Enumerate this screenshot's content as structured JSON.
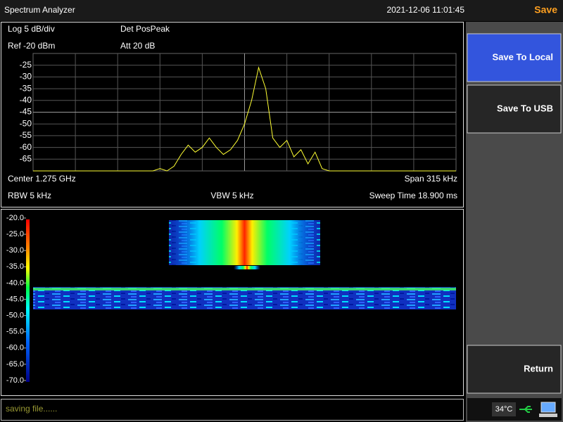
{
  "header": {
    "title": "Spectrum Analyzer",
    "datetime": "2021-12-06 11:01:45",
    "mode": "Save"
  },
  "spectrum": {
    "type": "line",
    "settings": {
      "scale": "Log 5 dB/div",
      "detector": "Det PosPeak",
      "ref": "Ref -20 dBm",
      "att": "Att 20 dB",
      "center": "Center 1.275 GHz",
      "span": "Span 315 kHz",
      "rbw": "RBW 5 kHz",
      "vbw": "VBW 5 kHz",
      "sweep": "Sweep Time 18.900 ms"
    },
    "ylim": [
      -70,
      -20
    ],
    "yticks": [
      -25,
      -30,
      -35,
      -40,
      -45,
      -50,
      -55,
      -60,
      -65
    ],
    "grid": true,
    "color": "#ffff33",
    "values": [
      -70,
      -70,
      -70,
      -70,
      -70,
      -70,
      -70,
      -70,
      -70,
      -70,
      -70,
      -70,
      -70,
      -70,
      -70,
      -70,
      -70,
      -70,
      -69,
      -70,
      -68,
      -63,
      -59,
      -62,
      -60,
      -56,
      -60,
      -63,
      -61,
      -57,
      -50,
      -40,
      -26,
      -35,
      -56,
      -60,
      -57,
      -64,
      -61,
      -67,
      -62,
      -69,
      -70,
      -70,
      -70,
      -70,
      -70,
      -70,
      -70,
      -70,
      -70,
      -70,
      -70,
      -70,
      -70,
      -70,
      -70,
      -70,
      -70,
      -70,
      -70
    ]
  },
  "waterfall": {
    "ylim": [
      -70,
      -20
    ],
    "yticks": [
      {
        "value": -20,
        "label": "-20.0"
      },
      {
        "value": -25,
        "label": "-25.0"
      },
      {
        "value": -30,
        "label": "-30.0"
      },
      {
        "value": -35,
        "label": "-35.0"
      },
      {
        "value": -40,
        "label": "-40.0"
      },
      {
        "value": -45,
        "label": "-45.0"
      },
      {
        "value": -50,
        "label": "-50.0"
      },
      {
        "value": -55,
        "label": "-55.0"
      },
      {
        "value": -60,
        "label": "-60.0"
      },
      {
        "value": -65,
        "label": "-65.0"
      },
      {
        "value": -70,
        "label": "-70.0"
      }
    ]
  },
  "softkeys": [
    "Save To Local",
    "Save To USB",
    "Return"
  ],
  "status": {
    "message": "saving file......",
    "temperature": "34°C"
  }
}
